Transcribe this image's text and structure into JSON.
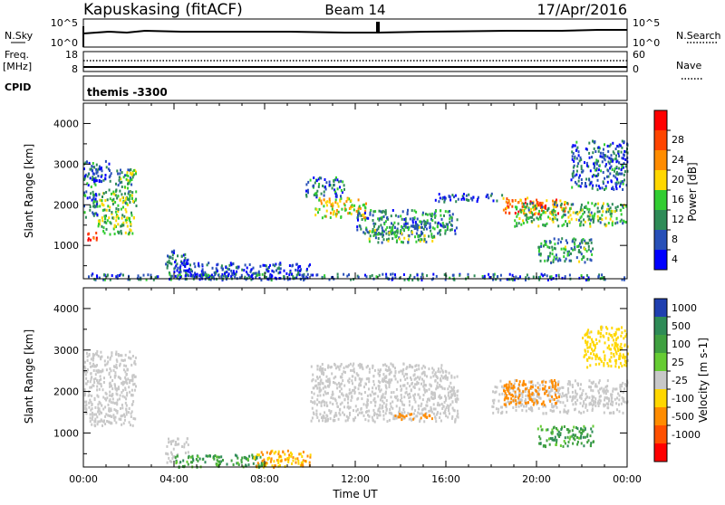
{
  "header": {
    "station": "Kapuskasing (fitACF)",
    "beam": "Beam 14",
    "date": "17/Apr/2016"
  },
  "noise_panel": {
    "left_label": "N.Sky",
    "left_ticks": [
      "10^5",
      "10^0"
    ],
    "right_label": "N.Search",
    "right_ticks": [
      "10^5",
      "10^0"
    ]
  },
  "freq_panel": {
    "left_label_1": "Freq.",
    "left_label_2": "[MHz]",
    "left_ticks": [
      "18",
      "8"
    ],
    "right_label": "Nave",
    "right_ticks": [
      "60",
      "0"
    ]
  },
  "cpid_panel": {
    "left_label": "CPID",
    "value": "themis -3300"
  },
  "colors": {
    "power_scale": [
      "#0000ff",
      "#2850b8",
      "#2e8b57",
      "#32cd32",
      "#ffd700",
      "#ff8c00",
      "#ff4500",
      "#ff0000"
    ],
    "velocity_scale": [
      "#1f3fb0",
      "#2e8b57",
      "#3fa040",
      "#66cc33",
      "#c8c8c8",
      "#ffd700",
      "#ff8c00",
      "#ff5000",
      "#ff0000"
    ]
  },
  "chart_data": [
    {
      "type": "heatmap",
      "title": "Power",
      "ylabel": "Slant Range [km]",
      "ylim": [
        180,
        4500
      ],
      "yticks": [
        1000,
        2000,
        3000,
        4000
      ],
      "xlim": [
        0,
        24
      ],
      "colorbar": {
        "label": "Power [dB]",
        "range": [
          0,
          32
        ],
        "ticks": [
          "4",
          "8",
          "12",
          "16",
          "20",
          "24",
          "28"
        ]
      },
      "regions": [
        {
          "t": [
            0.0,
            0.6
          ],
          "r": [
            1150,
            1350
          ],
          "v": 28
        },
        {
          "t": [
            0.6,
            2.2
          ],
          "r": [
            1300,
            2400
          ],
          "v": 14
        },
        {
          "t": [
            0.0,
            0.6
          ],
          "r": [
            1600,
            3100
          ],
          "v": 8
        },
        {
          "t": [
            0.3,
            1.2
          ],
          "r": [
            2600,
            3100
          ],
          "v": 5
        },
        {
          "t": [
            1.4,
            2.3
          ],
          "r": [
            2000,
            2900
          ],
          "v": 12
        },
        {
          "t": [
            3.6,
            4.6
          ],
          "r": [
            300,
            900
          ],
          "v": 6
        },
        {
          "t": [
            4.0,
            10.0
          ],
          "r": [
            200,
            600
          ],
          "v": 5
        },
        {
          "t": [
            10.2,
            12.5
          ],
          "r": [
            1700,
            2200
          ],
          "v": 18
        },
        {
          "t": [
            9.8,
            11.5
          ],
          "r": [
            2200,
            2700
          ],
          "v": 8
        },
        {
          "t": [
            12.0,
            16.5
          ],
          "r": [
            1300,
            1900
          ],
          "v": 9
        },
        {
          "t": [
            12.5,
            15.5
          ],
          "r": [
            1100,
            1500
          ],
          "v": 12
        },
        {
          "t": [
            18.5,
            21.5
          ],
          "r": [
            1800,
            2200
          ],
          "v": 24
        },
        {
          "t": [
            19.0,
            24.0
          ],
          "r": [
            1500,
            2100
          ],
          "v": 13
        },
        {
          "t": [
            20.0,
            22.5
          ],
          "r": [
            600,
            1200
          ],
          "v": 11
        },
        {
          "t": [
            21.5,
            24.0
          ],
          "r": [
            2400,
            3600
          ],
          "v": 7
        },
        {
          "t": [
            15.5,
            18.5
          ],
          "r": [
            2100,
            2300
          ],
          "v": 6
        },
        {
          "t": [
            0.0,
            24.0
          ],
          "r": [
            180,
            330
          ],
          "v": 7
        }
      ]
    },
    {
      "type": "heatmap",
      "title": "Velocity",
      "ylabel": "Slant Range [km]",
      "xlabel": "Time UT",
      "ylim": [
        180,
        4500
      ],
      "yticks": [
        1000,
        2000,
        3000,
        4000
      ],
      "xlim": [
        0,
        24
      ],
      "xticks": [
        "00:00",
        "04:00",
        "08:00",
        "12:00",
        "16:00",
        "20:00",
        "00:00"
      ],
      "colorbar": {
        "label": "Velocity [m s-1]",
        "ticks": [
          "1000",
          "500",
          "100",
          "25",
          "-25",
          "-100",
          "-500",
          "-1000"
        ]
      },
      "regions": [
        {
          "t": [
            0.0,
            2.3
          ],
          "r": [
            1200,
            3000
          ],
          "v": 0
        },
        {
          "t": [
            3.6,
            4.6
          ],
          "r": [
            300,
            900
          ],
          "v": 0
        },
        {
          "t": [
            4.0,
            8.0
          ],
          "r": [
            200,
            500
          ],
          "v": 80
        },
        {
          "t": [
            7.5,
            10.0
          ],
          "r": [
            200,
            600
          ],
          "v": -100
        },
        {
          "t": [
            10.0,
            16.5
          ],
          "r": [
            1300,
            2700
          ],
          "v": 0
        },
        {
          "t": [
            13.5,
            15.5
          ],
          "r": [
            1350,
            1500
          ],
          "v": -250
        },
        {
          "t": [
            18.0,
            24.0
          ],
          "r": [
            1500,
            2300
          ],
          "v": 0
        },
        {
          "t": [
            18.5,
            21.0
          ],
          "r": [
            1700,
            2300
          ],
          "v": -250
        },
        {
          "t": [
            20.0,
            22.5
          ],
          "r": [
            700,
            1200
          ],
          "v": 80
        },
        {
          "t": [
            22.0,
            24.0
          ],
          "r": [
            2600,
            3600
          ],
          "v": -60
        }
      ]
    }
  ]
}
